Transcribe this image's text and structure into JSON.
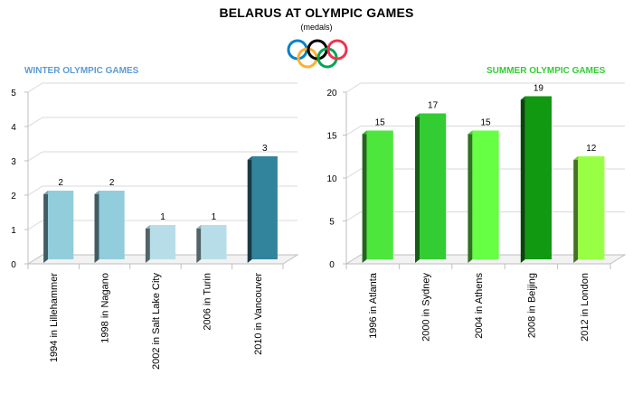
{
  "title": "BELARUS AT OLYMPIC GAMES",
  "subtitle": "(medals)",
  "colors": {
    "winter_title": "#5b9bd5",
    "summer_title": "#33cc33",
    "winter_bars": [
      "#92cddc",
      "#92cddc",
      "#b7dee8",
      "#b7dee8",
      "#31849b"
    ],
    "summer_bars": [
      "#4ce63c",
      "#33cc33",
      "#66ff44",
      "#129912",
      "#99ff44"
    ],
    "rings": [
      "#0081c8",
      "#fcb131",
      "#000000",
      "#00a651",
      "#ee334e"
    ]
  },
  "chart_data": [
    {
      "type": "bar",
      "title": "WINTER OLYMPIC GAMES",
      "categories": [
        "1994 in Lillehammer",
        "1998 in Nagano",
        "2002 in Salt Lake City",
        "2006 in Turin",
        "2010 in Vancouver"
      ],
      "values": [
        2,
        2,
        1,
        1,
        3
      ],
      "ylim": [
        0,
        5
      ],
      "yticks": [
        0,
        1,
        2,
        3,
        4,
        5
      ],
      "grid": true
    },
    {
      "type": "bar",
      "title": "SUMMER OLYMPIC GAMES",
      "categories": [
        "1996 in Atlanta",
        "2000 in Sydney",
        "2004 in Athens",
        "2008 in Beijing",
        "2012 in London"
      ],
      "values": [
        15,
        17,
        15,
        19,
        12
      ],
      "ylim": [
        0,
        20
      ],
      "yticks": [
        0,
        5,
        10,
        15,
        20
      ],
      "grid": true
    }
  ]
}
